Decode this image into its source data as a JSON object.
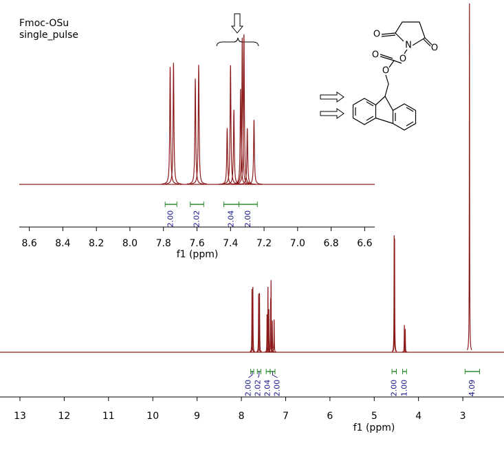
{
  "chart_data": [
    {
      "type": "nmr",
      "title": "Fmoc-OSu",
      "subtitle": "single_pulse",
      "xlabel": "f1 (ppm)",
      "xlim": [
        13.45,
        2.07
      ],
      "xticks": [
        13,
        12,
        11,
        10,
        9,
        8,
        7,
        6,
        5,
        4,
        3
      ],
      "ylim": [
        0,
        510
      ],
      "color": "#8b1a1a",
      "x": [
        7.76,
        7.74,
        7.61,
        7.59,
        7.42,
        7.4,
        7.38,
        7.34,
        7.33,
        7.3,
        7.26,
        4.55,
        4.54,
        4.32,
        4.3,
        2.85
      ],
      "values": [
        92,
        95,
        85,
        86,
        55,
        95,
        62,
        78,
        104,
        46,
        47,
        170,
        165,
        39,
        33,
        507
      ],
      "integrals": [
        {
          "range": [
            7.79,
            7.72
          ],
          "value": 2,
          "label": "2.00"
        },
        {
          "range": [
            7.64,
            7.56
          ],
          "value": 2.02,
          "label": "2.02"
        },
        {
          "range": [
            7.44,
            7.35
          ],
          "value": 2.04,
          "label": "2.04"
        },
        {
          "range": [
            7.35,
            7.24
          ],
          "value": 2,
          "label": "2.00"
        },
        {
          "range": [
            4.6,
            4.5
          ],
          "value": 2,
          "label": "2.00"
        },
        {
          "range": [
            4.36,
            4.27
          ],
          "value": 1,
          "label": "1.00"
        },
        {
          "range": [
            2.95,
            2.62
          ],
          "value": 4.09,
          "label": "4.09"
        }
      ]
    },
    {
      "type": "nmr",
      "xlabel": "f1 (ppm)",
      "xlim": [
        8.66,
        6.54
      ],
      "xticks": [
        8.6,
        8.4,
        8.2,
        {
          "value": 8,
          "label": "8.0"
        },
        7.8,
        7.6,
        7.4,
        7.2,
        {
          "value": 7,
          "label": "7.0"
        },
        6.8,
        6.6
      ],
      "ylim": [
        0,
        270
      ],
      "color": "#8b1a1a",
      "x": [
        7.76,
        7.74,
        7.61,
        7.59,
        7.42,
        7.4,
        7.38,
        7.34,
        7.33,
        7.32,
        7.3,
        7.26
      ],
      "values": [
        170,
        176,
        153,
        173,
        81,
        173,
        108,
        138,
        213,
        218,
        81,
        93
      ],
      "integrals": [
        {
          "range": [
            7.79,
            7.72
          ],
          "value": 2,
          "label": "2.00"
        },
        {
          "range": [
            7.64,
            7.56
          ],
          "value": 2.02,
          "label": "2.02"
        },
        {
          "range": [
            7.44,
            7.35
          ],
          "value": 2.04,
          "label": "2.04"
        },
        {
          "range": [
            7.35,
            7.24
          ],
          "value": 2,
          "label": "2.00"
        }
      ]
    }
  ],
  "structure": {
    "atoms": [
      "O",
      "N",
      "O",
      "O",
      "O",
      "O"
    ]
  }
}
